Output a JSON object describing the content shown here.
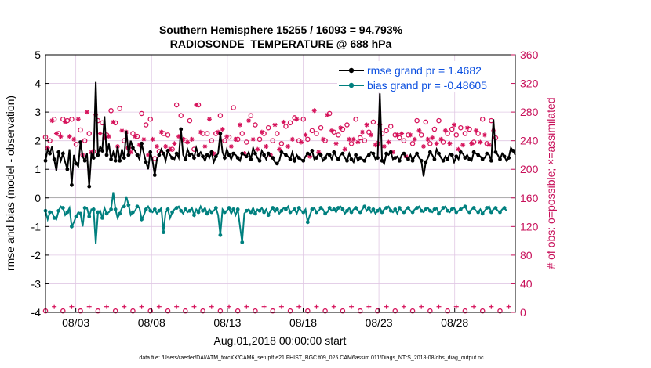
{
  "chart_data": {
    "type": "line",
    "title_line1": "Southern Hemisphere 15255 / 16093 = 94.793%",
    "title_line2": "RADIOSONDE_TEMPERATURE @ 688 hPa",
    "ylabel_left": "rmse and bias (model - observation)",
    "ylabel_right": "# of obs: o=possible; ×=assimilated",
    "xlabel": "Aug.01,2018 00:00:00 start",
    "footer": "data file: /Users/raeder/DAI/ATM_forcXX/CAM6_setup/f.e21.FHIST_BGC.f09_025.CAM6assim.011/Diags_NTrS_2018-08/obs_diag_output.nc",
    "y_left_range": [
      -4,
      5
    ],
    "y_left_ticks": [
      "-4",
      "-3",
      "-2",
      "-1",
      "0",
      "1",
      "2",
      "3",
      "4",
      "5"
    ],
    "y_right_range": [
      0,
      360
    ],
    "y_right_ticks": [
      "0",
      "40",
      "80",
      "120",
      "160",
      "200",
      "240",
      "280",
      "320",
      "360"
    ],
    "x_range": [
      1.0,
      32.0
    ],
    "x_ticks": [
      {
        "value": 3,
        "label": "08/03"
      },
      {
        "value": 8,
        "label": "08/08"
      },
      {
        "value": 13,
        "label": "08/13"
      },
      {
        "value": 18,
        "label": "08/18"
      },
      {
        "value": 23,
        "label": "08/23"
      },
      {
        "value": 28,
        "label": "08/28"
      }
    ],
    "legend": [
      {
        "name": "rmse grand pr = 1.4682",
        "color": "#000000"
      },
      {
        "name": "bias grand pr = -0.48605",
        "color": "#00807f"
      }
    ],
    "colors": {
      "rmse": "#000000",
      "bias": "#00807f",
      "obs": "#d6135b",
      "legend_text": "#0b4fe0",
      "zero_line": "#b0b0b0",
      "grid": "#e0c8e4"
    },
    "rmse": [
      1.3,
      1.7,
      1.55,
      1.8,
      1.35,
      0.95,
      1.6,
      1.3,
      1.55,
      1.25,
      1.0,
      1.7,
      0.45,
      1.5,
      1.2,
      1.1,
      1.95,
      1.45,
      1.3,
      1.55,
      0.4,
      1.55,
      1.4,
      4.05,
      1.5,
      1.8,
      1.65,
      2.85,
      1.5,
      1.9,
      1.35,
      1.6,
      1.3,
      1.8,
      1.3,
      1.7,
      1.4,
      2.35,
      1.5,
      2.0,
      1.75,
      1.65,
      1.5,
      1.35,
      1.9,
      1.55,
      1.25,
      1.0,
      1.6,
      1.3,
      0.8,
      1.35,
      1.5,
      1.7,
      1.55,
      1.3,
      1.65,
      1.5,
      1.4,
      1.35,
      1.55,
      1.4,
      2.4,
      1.5,
      1.35,
      1.7,
      1.5,
      1.55,
      1.4,
      1.75,
      1.5,
      1.6,
      1.45,
      1.3,
      1.5,
      1.4,
      1.6,
      1.25,
      1.45,
      1.55,
      2.25,
      1.6,
      1.4,
      1.7,
      1.5,
      1.35,
      1.55,
      1.5,
      1.4,
      1.3,
      1.55,
      1.5,
      1.45,
      1.6,
      1.35,
      1.75,
      1.55,
      1.4,
      1.3,
      1.65,
      1.5,
      1.35,
      1.55,
      1.45,
      1.4,
      1.25,
      1.2,
      1.3,
      1.6,
      1.55,
      1.5,
      1.45,
      1.35,
      1.6,
      1.3,
      1.5,
      1.4,
      1.35,
      1.3,
      1.45,
      1.55,
      1.5,
      1.65,
      1.35,
      1.4,
      1.55,
      1.5,
      1.3,
      1.4,
      1.55,
      1.5,
      1.35,
      1.6,
      1.45,
      1.35,
      1.5,
      1.55,
      1.4,
      1.3,
      1.55,
      1.35,
      1.25,
      1.5,
      1.3,
      1.4,
      1.35,
      1.3,
      1.45,
      1.5,
      1.6,
      1.55,
      1.35,
      1.4,
      3.65,
      1.3,
      1.2,
      1.55,
      1.5,
      1.6,
      1.35,
      1.4,
      1.45,
      1.3,
      1.5,
      1.55,
      1.4,
      1.35,
      1.5,
      1.3,
      1.45,
      1.55,
      1.4,
      1.3,
      0.75,
      1.25,
      1.4,
      1.6,
      1.5,
      1.35,
      1.7,
      1.55,
      1.4,
      1.3,
      1.45,
      1.35,
      1.55,
      1.5,
      1.25,
      1.45,
      1.35,
      1.6,
      1.55,
      1.4,
      1.5,
      1.35,
      1.3,
      1.6,
      1.55,
      1.5,
      1.45,
      1.35,
      1.4,
      1.55,
      1.5,
      1.3,
      2.75,
      1.6,
      1.5,
      1.35,
      1.55,
      1.45,
      1.3,
      1.4,
      1.75,
      1.65,
      1.5
    ],
    "bias": [
      -0.45,
      -0.75,
      -0.5,
      -0.5,
      -0.7,
      -0.75,
      -0.45,
      -0.3,
      -0.35,
      -0.6,
      -0.5,
      -0.35,
      -1.0,
      -0.85,
      -0.65,
      -0.5,
      -0.55,
      -1.0,
      -0.35,
      -0.35,
      -0.65,
      -0.4,
      -0.4,
      -1.6,
      -0.5,
      -0.45,
      -0.7,
      -0.35,
      -0.55,
      -0.5,
      -0.4,
      0.2,
      -0.4,
      -0.7,
      -0.55,
      -0.35,
      -0.3,
      0.05,
      -0.25,
      -0.6,
      -0.5,
      -0.45,
      -0.3,
      -0.35,
      -0.75,
      -0.6,
      -0.4,
      -0.3,
      -0.45,
      -0.5,
      -0.4,
      -0.55,
      -0.45,
      -0.35,
      -1.2,
      -0.5,
      -0.4,
      -0.7,
      -0.5,
      -0.4,
      -0.35,
      -0.3,
      -0.45,
      -0.55,
      -0.4,
      -0.5,
      -0.45,
      -0.35,
      -0.6,
      -0.4,
      -0.5,
      -0.3,
      -0.45,
      -0.35,
      -0.55,
      -0.4,
      -0.5,
      -0.45,
      -0.35,
      -0.6,
      -1.3,
      -0.4,
      -0.5,
      -0.45,
      -0.35,
      -0.55,
      -0.4,
      -0.6,
      -0.4,
      -1.0,
      -1.55,
      -0.55,
      -0.45,
      -0.4,
      -0.5,
      -0.35,
      -0.55,
      -0.4,
      -0.45,
      -0.35,
      -0.5,
      -0.4,
      -0.6,
      -0.45,
      -0.35,
      -0.5,
      -0.4,
      -0.55,
      -0.45,
      -0.35,
      -0.4,
      -0.3,
      -0.5,
      -0.45,
      -0.4,
      -0.55,
      -0.35,
      -0.45,
      -0.5,
      -0.4,
      -0.85,
      -0.6,
      -0.4,
      -0.35,
      -0.5,
      -0.45,
      -0.35,
      -0.4,
      -0.55,
      -0.5,
      -0.35,
      -0.45,
      -0.4,
      -0.5,
      -0.35,
      -0.3,
      -0.4,
      -0.55,
      -0.45,
      -0.35,
      -0.5,
      -0.4,
      -0.35,
      -0.45,
      -0.5,
      -0.4,
      -0.3,
      -0.45,
      -0.35,
      -0.5,
      -0.4,
      -0.55,
      -0.45,
      -0.35,
      -0.5,
      -0.4,
      -0.35,
      -0.3,
      -0.45,
      -0.5,
      -0.4,
      -0.55,
      -0.35,
      -0.45,
      -0.5,
      -0.4,
      -0.35,
      -0.45,
      -0.5,
      -0.4,
      -0.35,
      -0.3,
      -0.45,
      -0.5,
      -0.4,
      -0.35,
      -0.45,
      -0.5,
      -0.4,
      -0.35,
      -0.55,
      -0.45,
      -0.35,
      -0.3,
      -0.45,
      -0.5,
      -0.4,
      -0.35,
      -0.5,
      -0.45,
      -0.4,
      -0.35,
      -0.3,
      -0.45,
      -0.5,
      -0.4,
      -0.35,
      -0.45,
      -0.5,
      -0.4,
      -0.55,
      -0.45,
      -0.35,
      -0.3,
      -0.5,
      -0.4,
      -0.35,
      -0.45,
      -0.5,
      -0.4,
      -0.35,
      -0.45
    ],
    "obs_possible": [
      245,
      235,
      240,
      278,
      270,
      258,
      250,
      255,
      270,
      275,
      268,
      255,
      270,
      250,
      235,
      280,
      255,
      228,
      240,
      290,
      250,
      232,
      225,
      285,
      268,
      258,
      265,
      252,
      248,
      255,
      282,
      275,
      265,
      240,
      285,
      262,
      240,
      260,
      230,
      232,
      250,
      255,
      246,
      242,
      278,
      250,
      262,
      228,
      270,
      250,
      215,
      240,
      225,
      260,
      250,
      240,
      248,
      236,
      228,
      245,
      290,
      255,
      275,
      250,
      240,
      246,
      268,
      250,
      228,
      300,
      290,
      260,
      250,
      240,
      250,
      280,
      240,
      230,
      250,
      260,
      275,
      265,
      240,
      255,
      245,
      240,
      286,
      250,
      242,
      270,
      250,
      230,
      238,
      278,
      275,
      250,
      262,
      236,
      242,
      260,
      250,
      240,
      258,
      228,
      240,
      270,
      250,
      236,
      236,
      275,
      260,
      240,
      265,
      250,
      272,
      280,
      240,
      246,
      270,
      256,
      242,
      226,
      254,
      292,
      250,
      232,
      258,
      250,
      240,
      286,
      278,
      262,
      252,
      244,
      248,
      266,
      256,
      236,
      262,
      250,
      236,
      250,
      270,
      246,
      244,
      260,
      240,
      270,
      252,
      256,
      266,
      242,
      236,
      270,
      250,
      240,
      254,
      246,
      260,
      232,
      248,
      256,
      244,
      258,
      240,
      226,
      248,
      256,
      236,
      250,
      268,
      262,
      248,
      240,
      266,
      250,
      236,
      252,
      256,
      244,
      268,
      250,
      238,
      262,
      250,
      244,
      256,
      270,
      248,
      236,
      258,
      242,
      250,
      266,
      256,
      244,
      238,
      262,
      250,
      246,
      270,
      256,
      236,
      242,
      268,
      262,
      244
    ],
    "obs_assimilated": [
      238,
      230,
      232,
      268,
      262,
      250,
      242,
      246,
      262,
      266,
      260,
      246,
      262,
      242,
      228,
      270,
      246,
      220,
      232,
      280,
      242,
      224,
      218,
      276,
      260,
      250,
      256,
      244,
      240,
      246,
      272,
      266,
      256,
      232,
      276,
      254,
      232,
      252,
      222,
      224,
      242,
      246,
      238,
      234,
      268,
      242,
      254,
      220,
      262,
      242,
      208,
      232,
      218,
      252,
      242,
      232,
      240,
      228,
      220,
      236,
      280,
      246,
      266,
      242,
      232,
      238,
      260,
      242,
      220,
      290,
      280,
      252,
      242,
      232,
      242,
      270,
      232,
      222,
      242,
      252,
      266,
      256,
      232,
      246,
      236,
      232,
      276,
      242,
      234,
      262,
      242,
      222,
      230,
      268,
      266,
      242,
      254,
      228,
      234,
      252,
      242,
      232,
      250,
      220,
      232,
      262,
      242,
      228,
      228,
      266,
      252,
      232,
      256,
      242,
      264,
      270,
      232,
      238,
      262,
      248,
      234,
      218,
      246,
      282,
      242,
      224,
      250,
      242,
      232,
      276,
      268,
      254,
      244,
      236,
      240,
      258,
      248,
      228,
      254,
      242,
      228,
      242,
      262,
      238,
      236,
      252,
      232,
      262,
      244,
      248,
      258,
      234,
      228,
      262,
      242,
      232,
      246,
      238,
      252,
      224,
      240,
      248,
      236,
      250,
      232,
      218,
      240,
      248,
      228,
      242,
      260,
      254,
      240,
      232,
      258,
      242,
      228,
      244,
      248,
      236,
      260,
      242,
      230,
      254,
      242,
      236,
      248,
      262,
      240,
      228,
      250,
      234,
      242,
      258,
      248,
      236,
      230,
      254,
      242,
      238,
      262,
      248,
      228,
      234,
      260,
      254,
      236
    ]
  }
}
